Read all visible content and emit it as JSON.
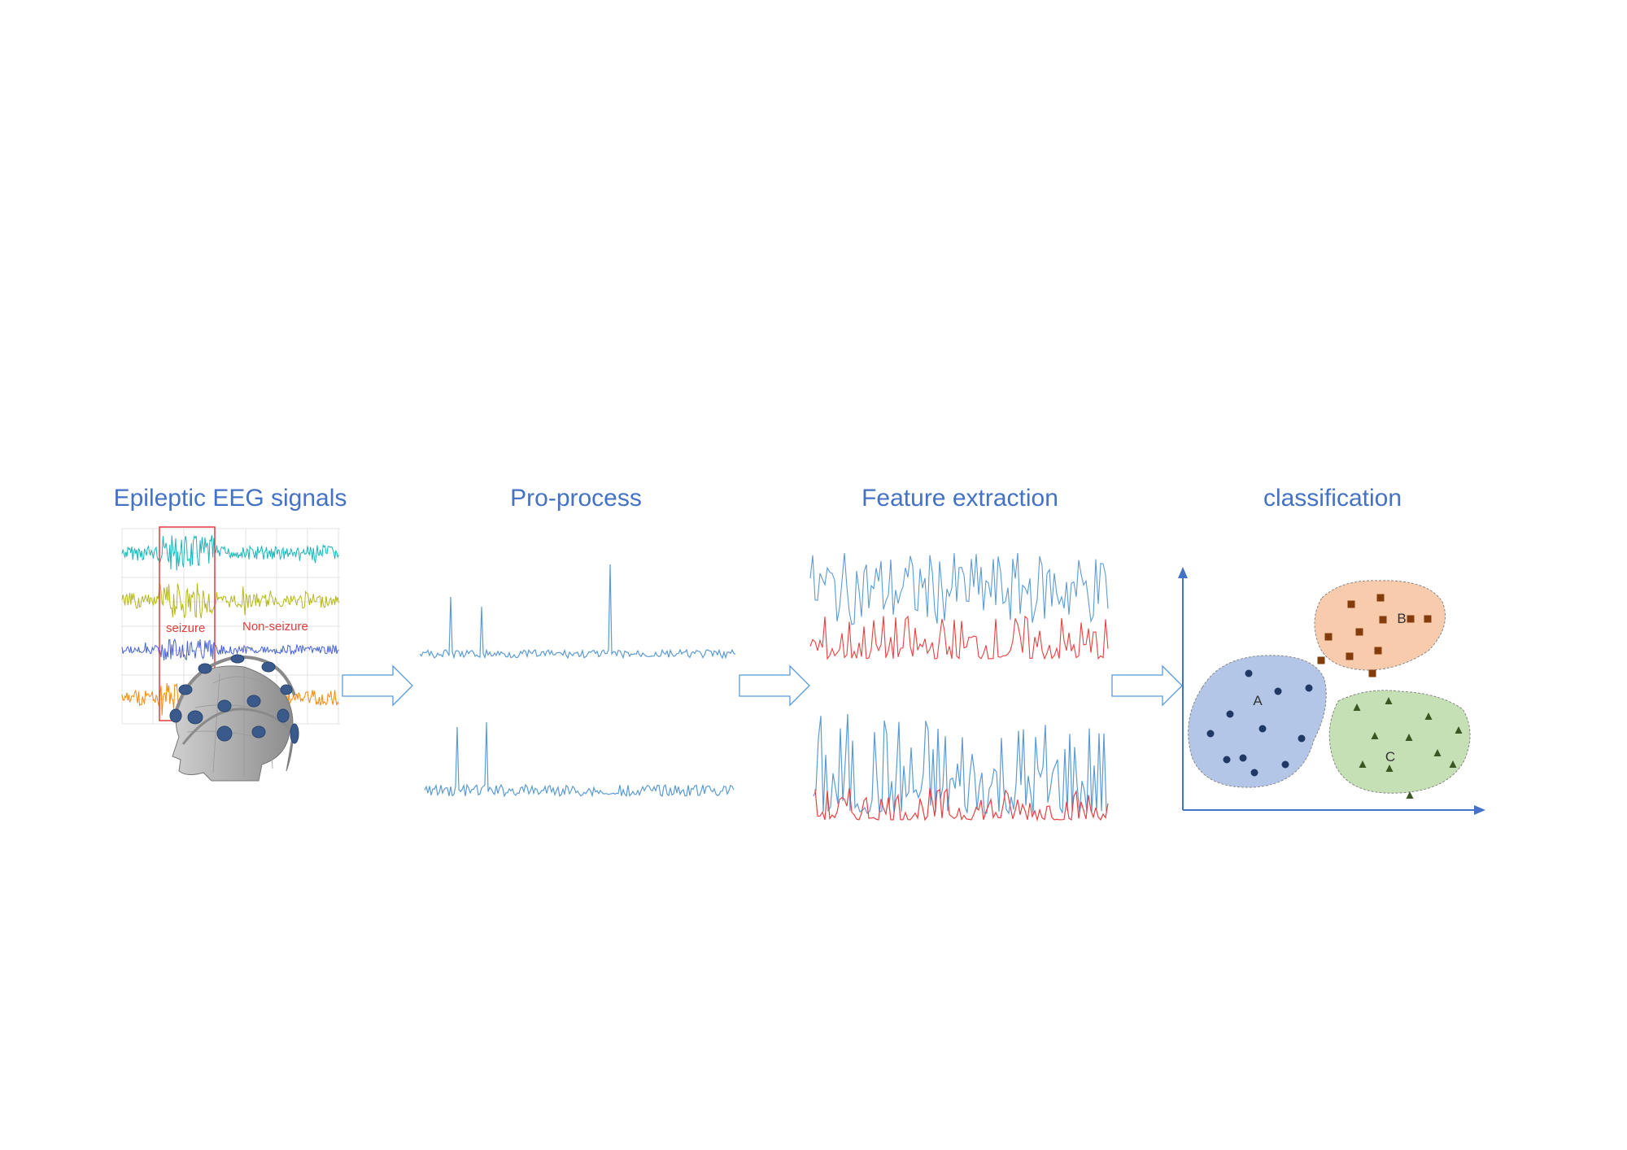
{
  "stages": [
    {
      "title": "Epileptic EEG signals"
    },
    {
      "title": "Pro-process"
    },
    {
      "title": "Feature extraction"
    },
    {
      "title": "classification"
    }
  ],
  "eeg": {
    "seizure_label": "seizure",
    "nonseizure_label": "Non-seizure",
    "channel_colors": [
      "#17B6B8",
      "#B5B817",
      "#4763D8",
      "#F58A07"
    ],
    "box_color": "#E03C3C"
  },
  "clusters": [
    {
      "label": "A",
      "fill": "#B4C6E7",
      "marker": "circle",
      "marker_color": "#1F3864"
    },
    {
      "label": "B",
      "fill": "#F8CBAD",
      "marker": "square",
      "marker_color": "#843C0C"
    },
    {
      "label": "C",
      "fill": "#C5E0B4",
      "marker": "triangle",
      "marker_color": "#385723"
    }
  ],
  "colors": {
    "title": "#4472C4",
    "signal_blue": "#5B9BD5",
    "signal_red": "#E84040",
    "arrow": "#5B9BD5",
    "axis": "#4472C4"
  },
  "icons": {
    "head": "eeg-cap-head-icon",
    "arrow": "right-arrow-icon"
  }
}
